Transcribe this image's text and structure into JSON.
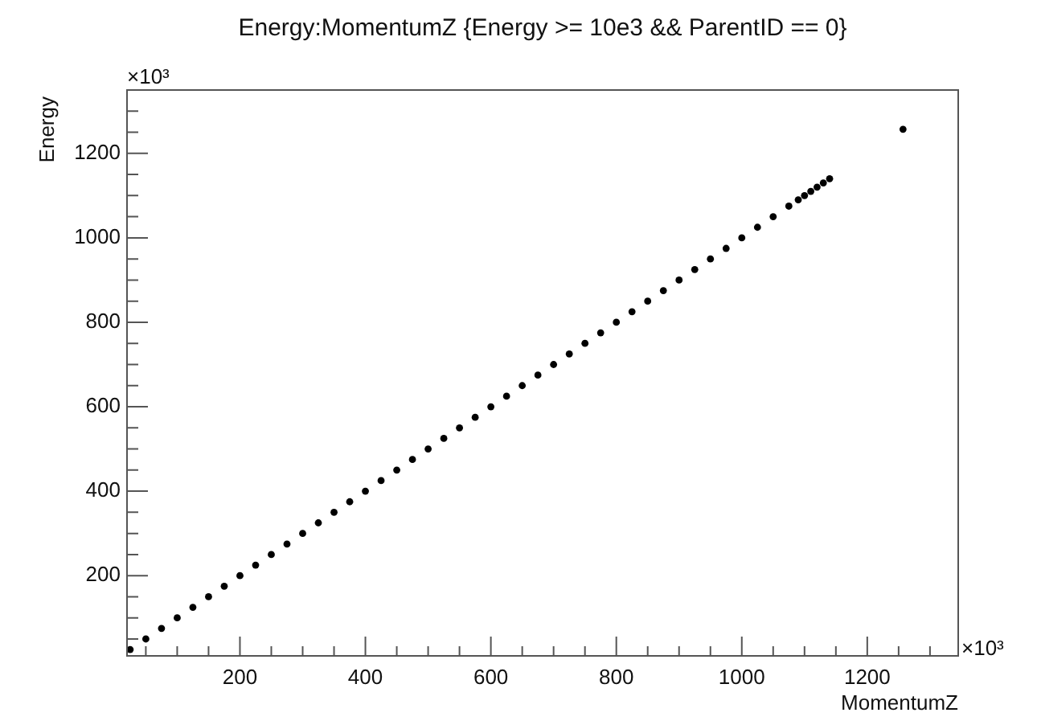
{
  "chart_data": {
    "type": "scatter",
    "title": "Energy:MomentumZ {Energy >= 10e3 && ParentID == 0}",
    "xlabel": "MomentumZ",
    "ylabel": "Energy",
    "annotations": [
      "×10³",
      "×10³"
    ],
    "x": [
      25,
      50,
      75,
      100,
      125,
      150,
      175,
      200,
      225,
      250,
      275,
      300,
      325,
      350,
      375,
      400,
      425,
      450,
      475,
      500,
      525,
      550,
      575,
      600,
      625,
      650,
      675,
      700,
      725,
      750,
      775,
      800,
      825,
      850,
      875,
      900,
      925,
      950,
      975,
      1000,
      1025,
      1050,
      1075,
      1090,
      1100,
      1110,
      1120,
      1130,
      1140,
      1257
    ],
    "values": [
      25,
      50,
      75,
      100,
      125,
      150,
      175,
      200,
      225,
      250,
      275,
      300,
      325,
      350,
      375,
      400,
      425,
      450,
      475,
      500,
      525,
      550,
      575,
      600,
      625,
      650,
      675,
      700,
      725,
      750,
      775,
      800,
      825,
      850,
      875,
      900,
      925,
      950,
      975,
      1000,
      1025,
      1050,
      1075,
      1090,
      1100,
      1110,
      1120,
      1130,
      1140,
      1257
    ],
    "color": "#000000",
    "marker": "circle",
    "legend": false,
    "xlim": [
      20,
      1345
    ],
    "ylim": [
      10,
      1350
    ],
    "xticks": [
      {
        "value": 50,
        "label": null
      },
      {
        "value": 100,
        "label": null
      },
      {
        "value": 150,
        "label": null
      },
      200,
      {
        "value": 250,
        "label": null
      },
      {
        "value": 300,
        "label": null
      },
      {
        "value": 350,
        "label": null
      },
      400,
      {
        "value": 450,
        "label": null
      },
      {
        "value": 500,
        "label": null
      },
      {
        "value": 550,
        "label": null
      },
      600,
      {
        "value": 650,
        "label": null
      },
      {
        "value": 700,
        "label": null
      },
      {
        "value": 750,
        "label": null
      },
      800,
      {
        "value": 850,
        "label": null
      },
      {
        "value": 900,
        "label": null
      },
      {
        "value": 950,
        "label": null
      },
      1000,
      {
        "value": 1050,
        "label": null
      },
      {
        "value": 1100,
        "label": null
      },
      {
        "value": 1150,
        "label": null
      },
      1200,
      {
        "value": 1250,
        "label": null
      },
      {
        "value": 1300,
        "label": null
      }
    ],
    "yticks": [
      {
        "value": 50,
        "label": null
      },
      {
        "value": 100,
        "label": null
      },
      {
        "value": 150,
        "label": null
      },
      200,
      {
        "value": 250,
        "label": null
      },
      {
        "value": 300,
        "label": null
      },
      {
        "value": 350,
        "label": null
      },
      400,
      {
        "value": 450,
        "label": null
      },
      {
        "value": 500,
        "label": null
      },
      {
        "value": 550,
        "label": null
      },
      600,
      {
        "value": 650,
        "label": null
      },
      {
        "value": 700,
        "label": null
      },
      {
        "value": 750,
        "label": null
      },
      800,
      {
        "value": 850,
        "label": null
      },
      {
        "value": 900,
        "label": null
      },
      {
        "value": 950,
        "label": null
      },
      1000,
      {
        "value": 1050,
        "label": null
      },
      {
        "value": 1100,
        "label": null
      },
      {
        "value": 1150,
        "label": null
      },
      1200,
      {
        "value": 1250,
        "label": null
      },
      {
        "value": 1300,
        "label": null
      }
    ]
  }
}
